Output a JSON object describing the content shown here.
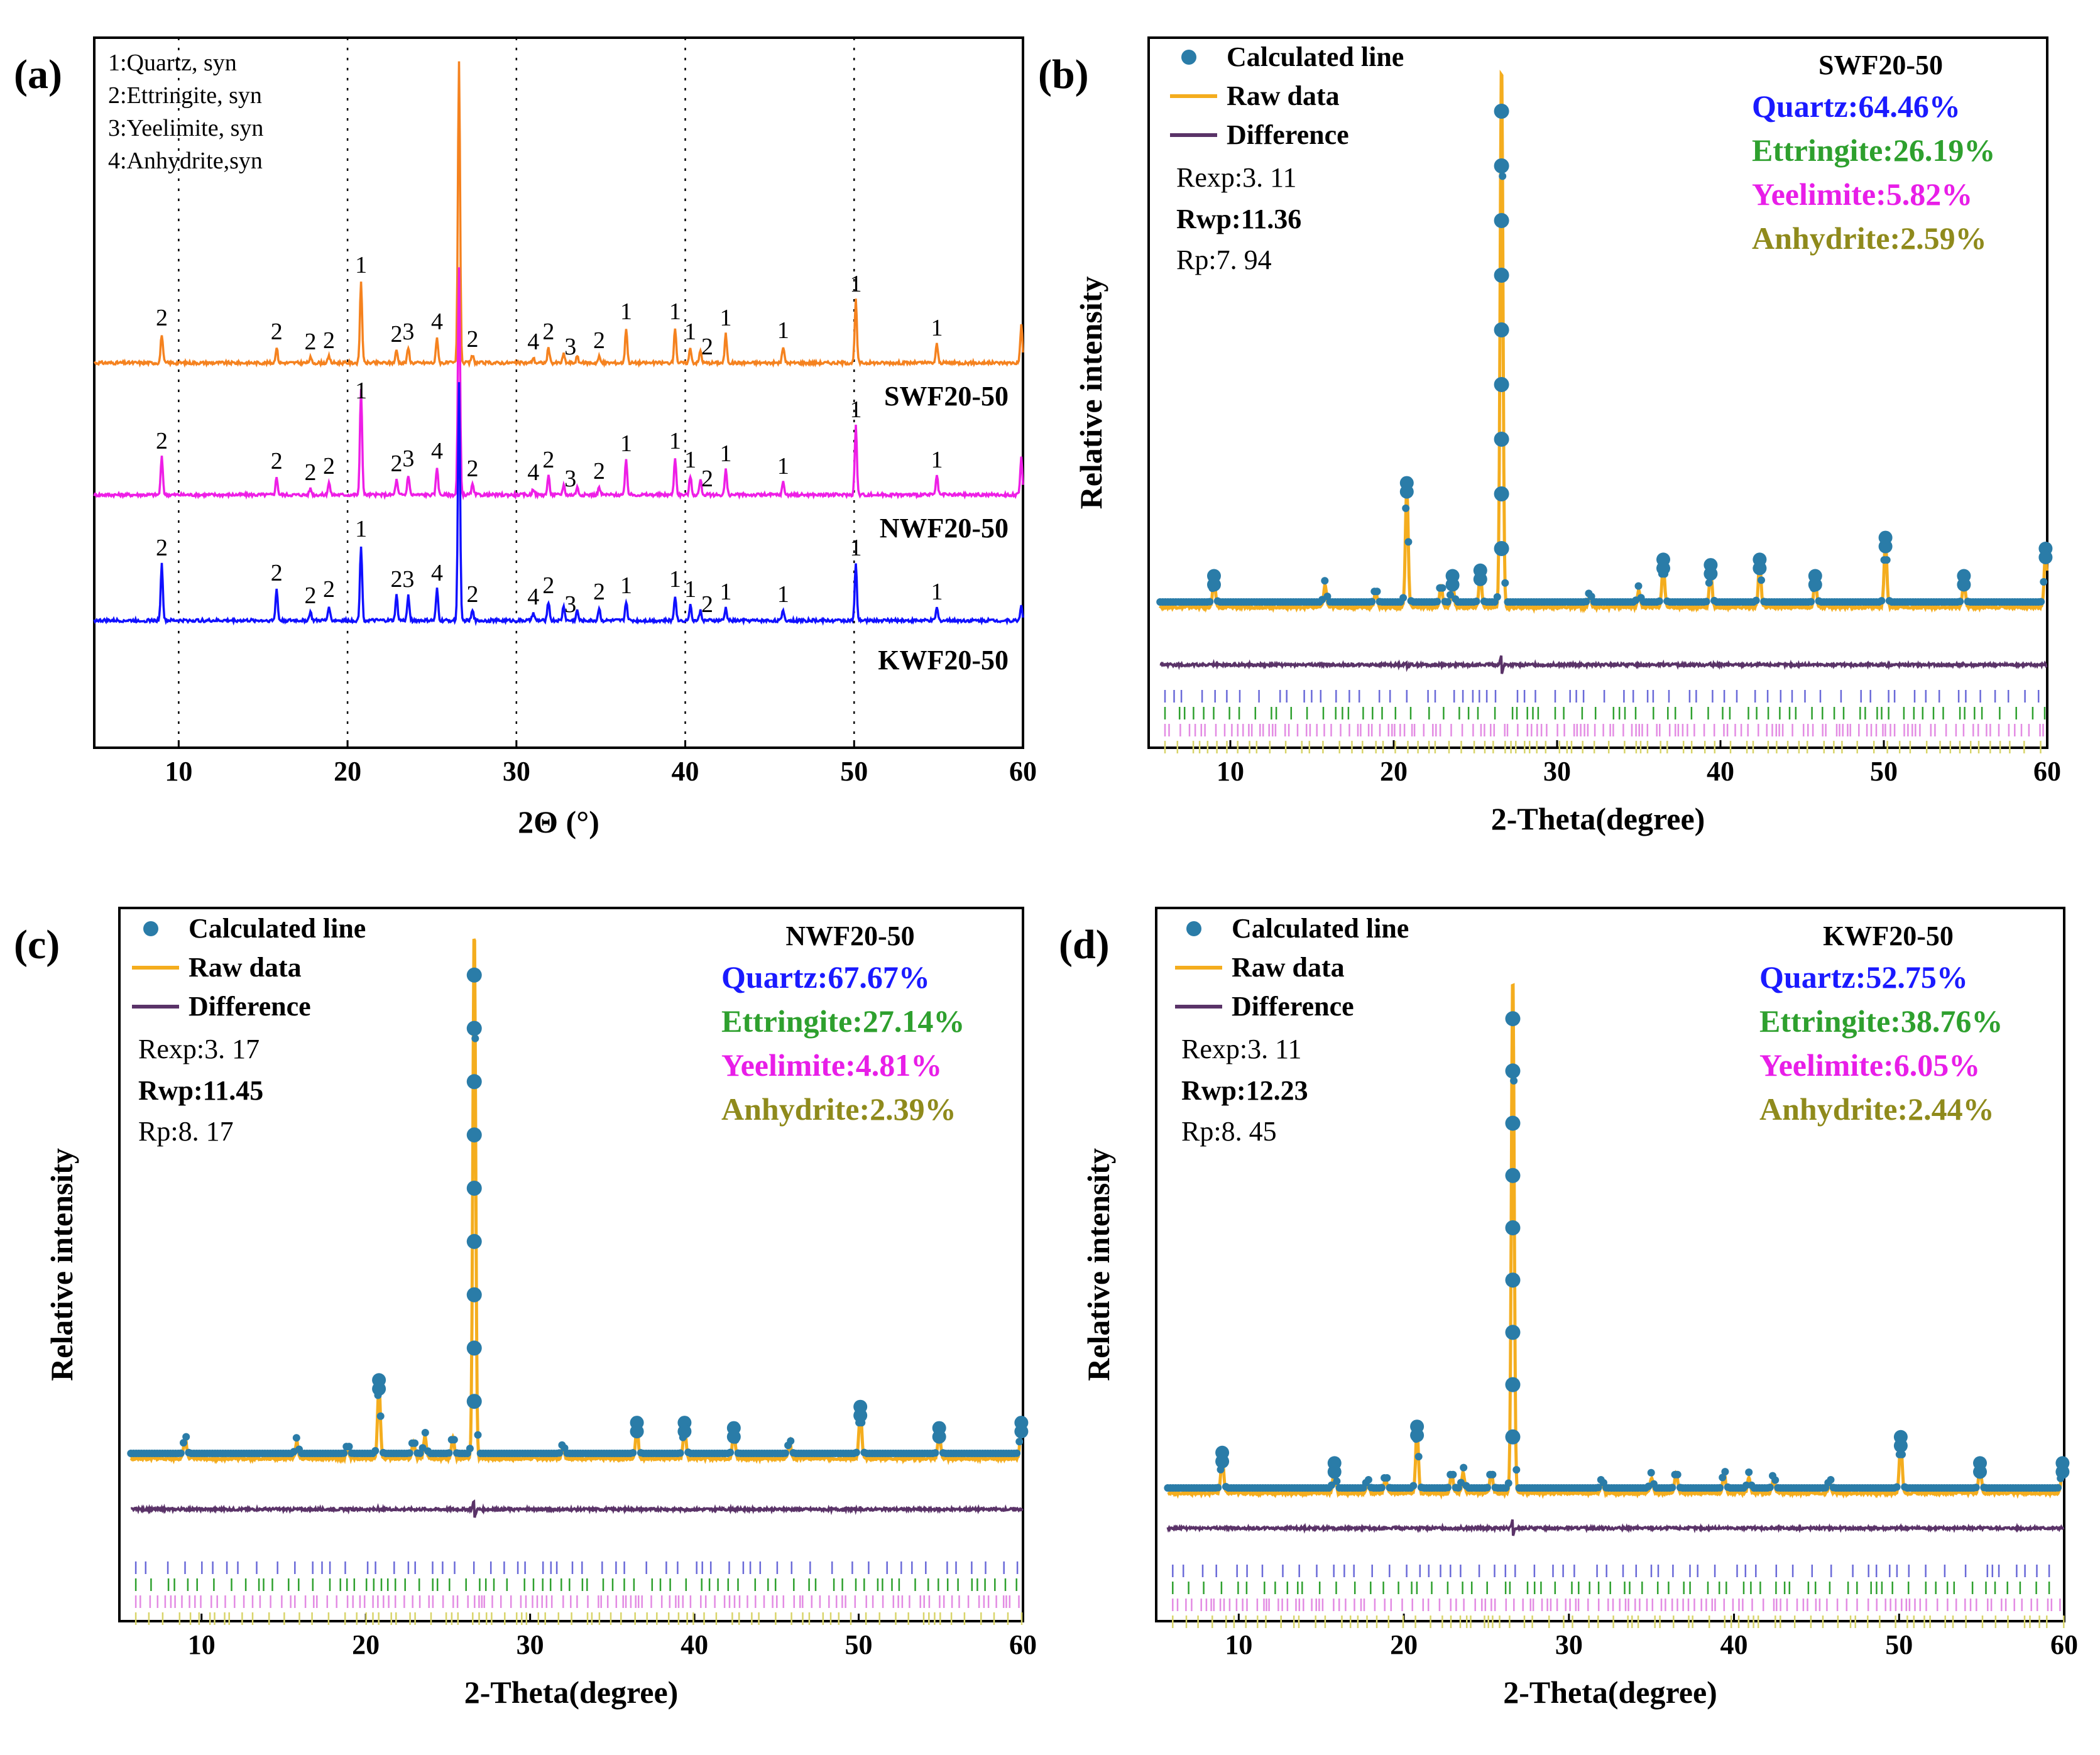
{
  "chart_data": [
    {
      "panel": "(a)",
      "type": "line",
      "xlabel": "2Θ (°)",
      "ylabel": "",
      "xlim": [
        5,
        60
      ],
      "xticks": [
        10,
        20,
        30,
        40,
        50,
        60
      ],
      "grid_lines_x": [
        10,
        20,
        30,
        40,
        50
      ],
      "legend_text": [
        "1:Quartz, syn",
        "2:Ettringite, syn",
        "3:Yeelimite, syn",
        "4:Anhydrite,syn"
      ],
      "series": [
        {
          "name": "SWF20-50",
          "color": "#f5821f",
          "peaks": [
            [
              9.0,
              0.23
            ],
            [
              15.8,
              0.12
            ],
            [
              17.8,
              0.04
            ],
            [
              18.9,
              0.05
            ],
            [
              20.8,
              0.65
            ],
            [
              22.9,
              0.1
            ],
            [
              23.6,
              0.12
            ],
            [
              25.3,
              0.2
            ],
            [
              26.6,
              2.4
            ],
            [
              27.4,
              0.06
            ],
            [
              31.0,
              0.04
            ],
            [
              31.9,
              0.12
            ],
            [
              32.8,
              0.07
            ],
            [
              33.6,
              0.05
            ],
            [
              34.9,
              0.05
            ],
            [
              36.5,
              0.28
            ],
            [
              39.4,
              0.28
            ],
            [
              40.3,
              0.12
            ],
            [
              40.9,
              0.1
            ],
            [
              42.4,
              0.23
            ],
            [
              45.8,
              0.13
            ],
            [
              50.1,
              0.5
            ],
            [
              54.9,
              0.15
            ],
            [
              59.9,
              0.3
            ]
          ]
        },
        {
          "name": "NWF20-50",
          "color": "#ee1ee6",
          "peaks": [
            [
              9.0,
              0.3
            ],
            [
              15.8,
              0.14
            ],
            [
              17.8,
              0.05
            ],
            [
              18.9,
              0.1
            ],
            [
              20.8,
              0.85
            ],
            [
              22.9,
              0.12
            ],
            [
              23.6,
              0.16
            ],
            [
              25.3,
              0.22
            ],
            [
              26.6,
              1.8
            ],
            [
              27.4,
              0.08
            ],
            [
              31.0,
              0.05
            ],
            [
              31.9,
              0.15
            ],
            [
              32.8,
              0.08
            ],
            [
              33.6,
              0.06
            ],
            [
              34.9,
              0.06
            ],
            [
              36.5,
              0.28
            ],
            [
              39.4,
              0.3
            ],
            [
              40.3,
              0.15
            ],
            [
              40.9,
              0.12
            ],
            [
              42.4,
              0.2
            ],
            [
              45.8,
              0.1
            ],
            [
              50.1,
              0.55
            ],
            [
              54.9,
              0.15
            ],
            [
              59.9,
              0.3
            ]
          ]
        },
        {
          "name": "KWF20-50",
          "color": "#1010ff",
          "peaks": [
            [
              9.0,
              0.45
            ],
            [
              15.8,
              0.25
            ],
            [
              17.8,
              0.07
            ],
            [
              18.9,
              0.12
            ],
            [
              20.8,
              0.6
            ],
            [
              22.9,
              0.2
            ],
            [
              23.6,
              0.2
            ],
            [
              25.3,
              0.25
            ],
            [
              26.6,
              1.9
            ],
            [
              27.4,
              0.08
            ],
            [
              31.0,
              0.06
            ],
            [
              31.9,
              0.15
            ],
            [
              32.8,
              0.12
            ],
            [
              33.6,
              0.08
            ],
            [
              34.9,
              0.1
            ],
            [
              36.5,
              0.15
            ],
            [
              39.4,
              0.2
            ],
            [
              40.3,
              0.12
            ],
            [
              40.9,
              0.08
            ],
            [
              42.4,
              0.1
            ],
            [
              45.8,
              0.08
            ],
            [
              50.1,
              0.45
            ],
            [
              54.9,
              0.1
            ],
            [
              59.9,
              0.12
            ]
          ]
        }
      ],
      "peak_labels": [
        {
          "x": 9.0,
          "label": "2"
        },
        {
          "x": 15.8,
          "label": "2"
        },
        {
          "x": 17.8,
          "label": "2"
        },
        {
          "x": 18.9,
          "label": "2"
        },
        {
          "x": 20.8,
          "label": "1"
        },
        {
          "x": 22.9,
          "label": "2"
        },
        {
          "x": 23.6,
          "label": "3"
        },
        {
          "x": 25.3,
          "label": "4"
        },
        {
          "x": 27.4,
          "label": "2"
        },
        {
          "x": 31.0,
          "label": "4"
        },
        {
          "x": 31.9,
          "label": "2"
        },
        {
          "x": 33.2,
          "label": "3"
        },
        {
          "x": 34.9,
          "label": "2"
        },
        {
          "x": 36.5,
          "label": "1"
        },
        {
          "x": 39.4,
          "label": "1"
        },
        {
          "x": 40.3,
          "label": "1"
        },
        {
          "x": 41.3,
          "label": "2"
        },
        {
          "x": 42.4,
          "label": "1"
        },
        {
          "x": 45.8,
          "label": "1"
        },
        {
          "x": 50.1,
          "label": "1"
        },
        {
          "x": 54.9,
          "label": "1"
        }
      ]
    },
    {
      "panel": "(b)",
      "type": "line",
      "sample": "SWF20-50",
      "xlabel": "2-Theta(degree)",
      "ylabel": "Relative intensity",
      "xlim": [
        5,
        60
      ],
      "xticks": [
        10,
        20,
        30,
        40,
        50,
        60
      ],
      "legend": [
        "Calculated line",
        "Raw data",
        "Difference"
      ],
      "stats": [
        "Rexp:3. 11",
        "Rwp:11.36",
        "Rp:7. 94"
      ],
      "phases": [
        {
          "label": "Quartz:64.46%",
          "color": "#1a1aff"
        },
        {
          "label": "Ettringite:26.19%",
          "color": "#2ea02e"
        },
        {
          "label": "Yeelimite:5.82%",
          "color": "#e81ee8"
        },
        {
          "label": "Anhydrite:2.59%",
          "color": "#8f8a1c"
        }
      ],
      "peaks": [
        [
          9.0,
          0.05
        ],
        [
          15.8,
          0.04
        ],
        [
          18.9,
          0.03
        ],
        [
          20.8,
          0.22
        ],
        [
          22.9,
          0.04
        ],
        [
          23.6,
          0.05
        ],
        [
          25.3,
          0.06
        ],
        [
          26.6,
          1.0
        ],
        [
          32.0,
          0.02
        ],
        [
          35.0,
          0.03
        ],
        [
          36.5,
          0.08
        ],
        [
          39.4,
          0.07
        ],
        [
          42.4,
          0.08
        ],
        [
          45.8,
          0.05
        ],
        [
          50.1,
          0.12
        ],
        [
          54.9,
          0.05
        ],
        [
          59.9,
          0.1
        ]
      ]
    },
    {
      "panel": "(c)",
      "type": "line",
      "sample": "NWF20-50",
      "xlabel": "2-Theta(degree)",
      "ylabel": "Relative intensity",
      "xlim": [
        5,
        60
      ],
      "xticks": [
        10,
        20,
        30,
        40,
        50,
        60
      ],
      "legend": [
        "Calculated line",
        "Raw data",
        "Difference"
      ],
      "stats": [
        "Rexp:3. 17",
        "Rwp:11.45",
        "Rp:8. 17"
      ],
      "phases": [
        {
          "label": "Quartz:67.67%",
          "color": "#1a1aff"
        },
        {
          "label": "Ettringite:27.14%",
          "color": "#2ea02e"
        },
        {
          "label": "Yeelimite:4.81%",
          "color": "#e81ee8"
        },
        {
          "label": "Anhydrite:2.39%",
          "color": "#8f8a1c"
        }
      ],
      "peaks": [
        [
          9.0,
          0.04
        ],
        [
          15.8,
          0.03
        ],
        [
          18.9,
          0.02
        ],
        [
          20.8,
          0.14
        ],
        [
          22.9,
          0.03
        ],
        [
          23.6,
          0.04
        ],
        [
          25.3,
          0.04
        ],
        [
          26.6,
          1.0
        ],
        [
          32.0,
          0.02
        ],
        [
          36.5,
          0.06
        ],
        [
          39.4,
          0.06
        ],
        [
          42.4,
          0.05
        ],
        [
          45.8,
          0.03
        ],
        [
          50.1,
          0.09
        ],
        [
          54.9,
          0.05
        ],
        [
          59.9,
          0.06
        ]
      ]
    },
    {
      "panel": "(d)",
      "type": "line",
      "sample": "KWF20-50",
      "xlabel": "2-Theta(degree)",
      "ylabel": "Relative intensity",
      "xlim": [
        5,
        60
      ],
      "xticks": [
        10,
        20,
        30,
        40,
        50,
        60
      ],
      "legend": [
        "Calculated line",
        "Raw data",
        "Difference"
      ],
      "stats": [
        "Rexp:3. 11",
        "Rwp:12.23",
        "Rp:8. 45"
      ],
      "phases": [
        {
          "label": "Quartz:52.75%",
          "color": "#1a1aff"
        },
        {
          "label": "Ettringite:38.76%",
          "color": "#2ea02e"
        },
        {
          "label": "Yeelimite:6.05%",
          "color": "#e81ee8"
        },
        {
          "label": "Anhydrite:2.44%",
          "color": "#8f8a1c"
        }
      ],
      "peaks": [
        [
          9.0,
          0.07
        ],
        [
          15.8,
          0.05
        ],
        [
          17.8,
          0.02
        ],
        [
          18.9,
          0.03
        ],
        [
          20.8,
          0.12
        ],
        [
          22.9,
          0.04
        ],
        [
          23.6,
          0.04
        ],
        [
          25.3,
          0.04
        ],
        [
          26.6,
          1.0
        ],
        [
          32.0,
          0.02
        ],
        [
          35.0,
          0.03
        ],
        [
          36.5,
          0.04
        ],
        [
          39.4,
          0.04
        ],
        [
          40.9,
          0.03
        ],
        [
          42.4,
          0.03
        ],
        [
          45.8,
          0.02
        ],
        [
          50.1,
          0.1
        ],
        [
          54.9,
          0.05
        ],
        [
          59.9,
          0.05
        ]
      ]
    }
  ],
  "colors": {
    "calculated": "#2a7ca8",
    "raw": "#f4ad1e",
    "difference": "#5a3368",
    "axis": "#000000",
    "quartz_ticks": "#6a6ad8",
    "ettringite_ticks": "#2ea02e",
    "yeelimite_ticks": "#e38be3",
    "anhydrite_ticks": "#d8d46a"
  }
}
